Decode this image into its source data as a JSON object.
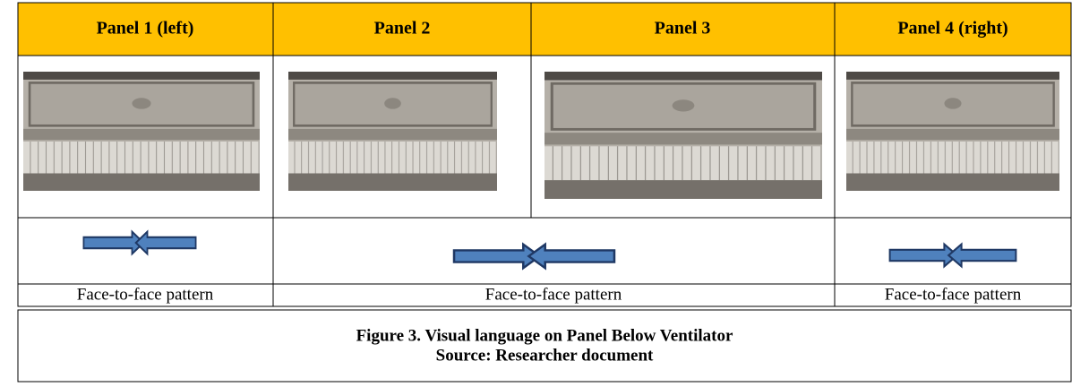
{
  "header": [
    "Panel 1 (left)",
    "Panel 2",
    "Panel 3",
    "Panel 4 (right)"
  ],
  "patterns": [
    "Face-to-face pattern",
    "Face-to-face pattern",
    "Face-to-face pattern"
  ],
  "caption": {
    "title": "Figure 3. Visual language on Panel Below Ventilator",
    "source": "Source: Researcher document"
  }
}
